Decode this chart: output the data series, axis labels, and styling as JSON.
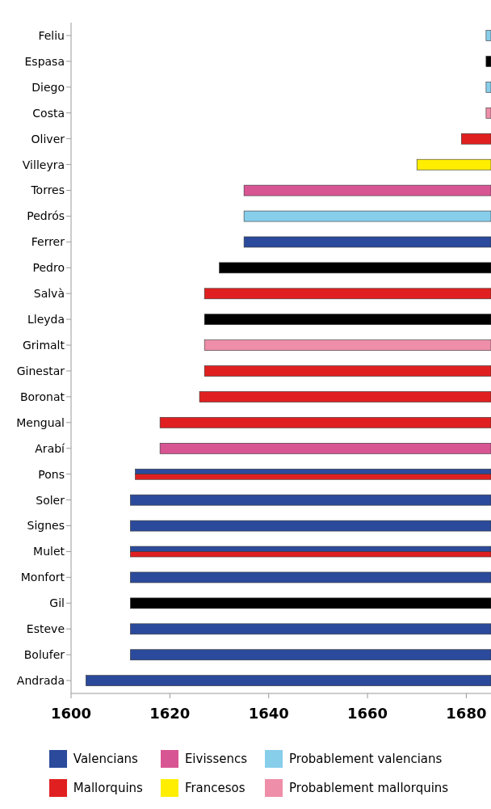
{
  "chart_data": {
    "type": "bar",
    "orientation": "horizontal",
    "legend": "bottom",
    "categories": [
      "Feliu",
      "Espasa",
      "Diego",
      "Costa",
      "Oliver",
      "Villeyra",
      "Torres",
      "Pedrós",
      "Ferrer",
      "Pedro",
      "Salvà",
      "Lleyda",
      "Grimalt",
      "Ginestar",
      "Boronat",
      "Mengual",
      "Arabí",
      "Pons",
      "Soler",
      "Signes",
      "Mulet",
      "Monfort",
      "Gil",
      "Esteve",
      "Bolufer",
      "Andrada"
    ],
    "xlim": [
      1600,
      1685
    ],
    "xticks": [
      1600,
      1620,
      1640,
      1660,
      1680
    ],
    "series": [
      {
        "name": "Valencians",
        "color": "#2b4a9b",
        "base": [
          null,
          null,
          null,
          null,
          null,
          null,
          null,
          null,
          1635,
          null,
          null,
          null,
          null,
          null,
          null,
          null,
          null,
          1613,
          1612,
          1612,
          1612,
          1612,
          null,
          1612,
          1612,
          1603
        ],
        "values": [
          null,
          null,
          null,
          null,
          null,
          null,
          null,
          null,
          50,
          null,
          null,
          null,
          null,
          null,
          null,
          null,
          null,
          72,
          73,
          73,
          73,
          73,
          null,
          73,
          73,
          82
        ]
      },
      {
        "name": "Mallorquins",
        "color": "#e02020",
        "base": [
          null,
          null,
          null,
          null,
          1679,
          null,
          null,
          null,
          null,
          null,
          1627,
          null,
          null,
          1627,
          1626,
          1618,
          null,
          1613,
          null,
          null,
          1612,
          null,
          null,
          null,
          null,
          null
        ],
        "values": [
          null,
          null,
          null,
          null,
          6,
          null,
          null,
          null,
          null,
          null,
          58,
          null,
          null,
          58,
          59,
          67,
          null,
          72,
          null,
          null,
          73,
          null,
          null,
          null,
          null,
          null
        ]
      },
      {
        "name": "Eivissencs",
        "color": "#d85593",
        "base": [
          null,
          null,
          null,
          null,
          null,
          null,
          1635,
          null,
          null,
          null,
          null,
          null,
          null,
          null,
          null,
          null,
          1618,
          null,
          null,
          null,
          null,
          null,
          null,
          null,
          null,
          null
        ],
        "values": [
          null,
          null,
          null,
          null,
          null,
          null,
          50,
          null,
          null,
          null,
          null,
          null,
          null,
          null,
          null,
          null,
          67,
          null,
          null,
          null,
          null,
          null,
          null,
          null,
          null,
          null
        ]
      },
      {
        "name": "Francesos",
        "color": "#ffee00",
        "base": [
          null,
          null,
          null,
          null,
          null,
          1670,
          null,
          null,
          null,
          null,
          null,
          null,
          null,
          null,
          null,
          null,
          null,
          null,
          null,
          null,
          null,
          null,
          null,
          null,
          null,
          null
        ],
        "values": [
          null,
          null,
          null,
          null,
          null,
          15,
          null,
          null,
          null,
          null,
          null,
          null,
          null,
          null,
          null,
          null,
          null,
          null,
          null,
          null,
          null,
          null,
          null,
          null,
          null,
          null
        ]
      },
      {
        "name": "Probablement valencians",
        "color": "#87ceeb",
        "base": [
          1684,
          null,
          1684,
          null,
          null,
          null,
          null,
          1635,
          null,
          null,
          null,
          null,
          null,
          null,
          null,
          null,
          null,
          null,
          null,
          null,
          null,
          null,
          null,
          null,
          null,
          null
        ],
        "values": [
          1,
          null,
          1,
          null,
          null,
          null,
          null,
          50,
          null,
          null,
          null,
          null,
          null,
          null,
          null,
          null,
          null,
          null,
          null,
          null,
          null,
          null,
          null,
          null,
          null,
          null
        ]
      },
      {
        "name": "Probablement mallorquins",
        "color": "#ee8ea8",
        "base": [
          null,
          null,
          null,
          1684,
          null,
          null,
          null,
          null,
          null,
          null,
          null,
          null,
          1627,
          null,
          null,
          null,
          null,
          null,
          null,
          null,
          null,
          null,
          null,
          null,
          null,
          null
        ],
        "values": [
          null,
          null,
          null,
          1,
          null,
          null,
          null,
          null,
          null,
          null,
          null,
          null,
          58,
          null,
          null,
          null,
          null,
          null,
          null,
          null,
          null,
          null,
          null,
          null,
          null,
          null
        ]
      },
      {
        "color": "#000000",
        "base": [
          null,
          1684,
          null,
          null,
          null,
          null,
          null,
          null,
          null,
          1630,
          null,
          1627,
          null,
          null,
          null,
          null,
          null,
          null,
          null,
          null,
          null,
          null,
          1612,
          null,
          null,
          null
        ],
        "values": [
          null,
          1,
          null,
          null,
          null,
          null,
          null,
          null,
          null,
          55,
          null,
          58,
          null,
          null,
          null,
          null,
          null,
          null,
          null,
          null,
          null,
          null,
          73,
          null,
          null,
          null
        ]
      }
    ]
  }
}
